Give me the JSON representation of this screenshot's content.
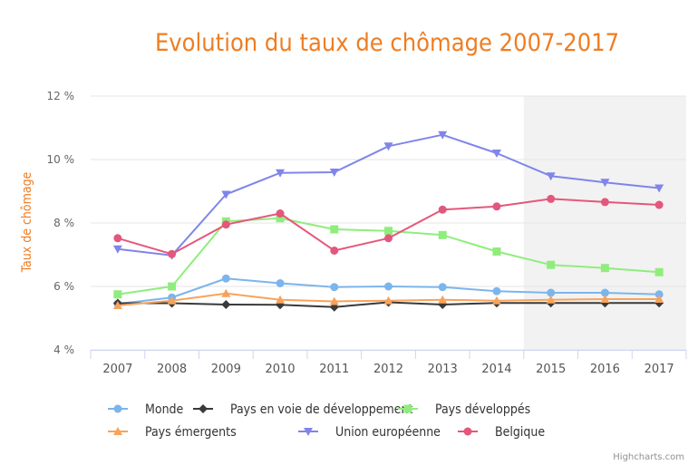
{
  "chart_data": {
    "type": "line",
    "title": "Evolution du taux de chômage 2007-2017",
    "ylabel": "Taux de chômage",
    "xlabel": "",
    "categories": [
      "2007",
      "2008",
      "2009",
      "2010",
      "2011",
      "2012",
      "2013",
      "2014",
      "2015",
      "2016",
      "2017"
    ],
    "ylim": [
      4,
      12
    ],
    "yticks": [
      4,
      6,
      8,
      10,
      12
    ],
    "ytick_labels": [
      "4 %",
      "6 %",
      "8 %",
      "10 %",
      "12 %"
    ],
    "highlight_band": {
      "from_category": "2015",
      "to_category": "2017",
      "color": "#f2f2f2"
    },
    "series": [
      {
        "name": "Monde",
        "color": "#7cb5ec",
        "marker": "circle",
        "values": [
          5.45,
          5.65,
          6.25,
          6.1,
          5.98,
          6.0,
          5.98,
          5.85,
          5.8,
          5.8,
          5.75
        ]
      },
      {
        "name": "Pays en voie de développement",
        "color": "#3a3a3a",
        "marker": "diamond",
        "values": [
          5.47,
          5.47,
          5.43,
          5.42,
          5.35,
          5.5,
          5.43,
          5.48,
          5.48,
          5.48,
          5.48
        ]
      },
      {
        "name": "Pays développés",
        "color": "#90ed7d",
        "marker": "square",
        "values": [
          5.75,
          6.0,
          8.05,
          8.15,
          7.8,
          7.75,
          7.62,
          7.1,
          6.68,
          6.58,
          6.45
        ]
      },
      {
        "name": "Pays émergents",
        "color": "#f7a35c",
        "marker": "triangle",
        "values": [
          5.4,
          5.55,
          5.78,
          5.58,
          5.53,
          5.55,
          5.58,
          5.55,
          5.58,
          5.6,
          5.6
        ]
      },
      {
        "name": "Union européenne",
        "color": "#8085e9",
        "marker": "triangle-down",
        "values": [
          7.18,
          6.98,
          8.9,
          9.58,
          9.6,
          10.42,
          10.78,
          10.2,
          9.48,
          9.28,
          9.1
        ]
      },
      {
        "name": "Belgique",
        "color": "#e4577c",
        "marker": "circle",
        "values": [
          7.52,
          7.02,
          7.95,
          8.3,
          7.13,
          7.52,
          8.42,
          8.52,
          8.76,
          8.66,
          8.57
        ]
      }
    ],
    "legend_position": "bottom",
    "credits": "Highcharts.com"
  }
}
